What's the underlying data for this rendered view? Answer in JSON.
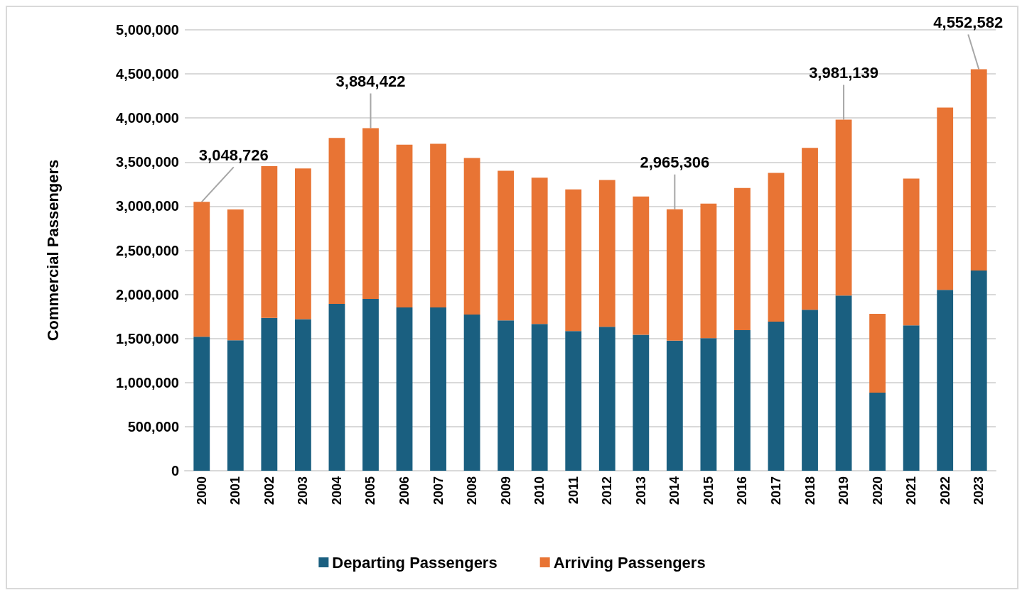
{
  "chart_data": {
    "type": "bar",
    "stacked": true,
    "ylabel": "Commercial Passengers",
    "categories": [
      "2000",
      "2001",
      "2002",
      "2003",
      "2004",
      "2005",
      "2006",
      "2007",
      "2008",
      "2009",
      "2010",
      "2011",
      "2012",
      "2013",
      "2014",
      "2015",
      "2016",
      "2017",
      "2018",
      "2019",
      "2020",
      "2021",
      "2022",
      "2023"
    ],
    "series": [
      {
        "name": "Departing Passengers",
        "color": "#1a5f80",
        "values": [
          1520000,
          1480000,
          1734000,
          1720000,
          1893000,
          1948000,
          1852000,
          1852000,
          1771000,
          1705000,
          1664000,
          1584000,
          1633000,
          1541000,
          1476000,
          1503000,
          1595000,
          1691000,
          1825000,
          1986000,
          886000,
          1649000,
          2051000,
          2270000
        ]
      },
      {
        "name": "Arriving Passengers",
        "color": "#e87434",
        "values": [
          1528726,
          1483000,
          1720000,
          1708000,
          1882000,
          1936422,
          1845000,
          1856000,
          1775000,
          1697000,
          1660000,
          1606000,
          1665000,
          1569000,
          1489306,
          1526000,
          1611000,
          1687000,
          1837000,
          1995139,
          893000,
          1664000,
          2067000,
          2282582
        ]
      }
    ],
    "ylim": [
      0,
      5000000
    ],
    "yticks": [
      0,
      {
        "value": 500000,
        "label": "500,000"
      },
      {
        "value": 1000000,
        "label": "1,000,000"
      },
      {
        "value": 1500000,
        "label": "1,500,000"
      },
      {
        "value": 2000000,
        "label": "2,000,000"
      },
      {
        "value": 2500000,
        "label": "2,500,000"
      },
      {
        "value": 3000000,
        "label": "3,000,000"
      },
      {
        "value": 3500000,
        "label": "3,500,000"
      },
      {
        "value": 4000000,
        "label": "4,000,000"
      },
      {
        "value": 4500000,
        "label": "4,500,000"
      },
      {
        "value": 5000000,
        "label": "5,000,000"
      }
    ],
    "grid": "y",
    "legend": "bottom",
    "annotations": [
      {
        "text": "3,048,726",
        "x": "2000",
        "y": 3048726
      },
      {
        "text": "3,884,422",
        "x": "2005",
        "y": 3884422
      },
      {
        "text": "2,965,306",
        "x": "2014",
        "y": 2965306
      },
      {
        "text": "3,981,139",
        "x": "2019",
        "y": 3981139
      },
      {
        "text": "4,552,582",
        "x": "2023",
        "y": 4552582
      }
    ]
  }
}
